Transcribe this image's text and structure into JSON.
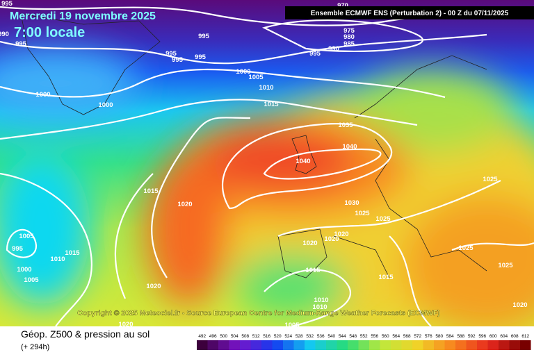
{
  "header": {
    "date_line": "Mercredi 19 novembre 2025",
    "time_line": "7:00 locale",
    "model_line": "Ensemble ECMWF ENS  (Perturbation 2)  - 00 Z du 07/11/2025"
  },
  "copyright": "Copyright © 2025 Meteociel.fr - Source European Centre for Medium-Range Weather Forecasts (ECMWF)",
  "footer": {
    "field": "Géop. Z500 & pression au sol",
    "lead": "(+ 294h)"
  },
  "colorbar": [
    492,
    496,
    500,
    504,
    508,
    512,
    516,
    520,
    524,
    528,
    532,
    536,
    540,
    544,
    548,
    552,
    556,
    560,
    564,
    568,
    572,
    576,
    580,
    584,
    588,
    592,
    596,
    600,
    604,
    608,
    612
  ],
  "isobar_labels": [
    995,
    990,
    995,
    995,
    995,
    995,
    995,
    970,
    975,
    980,
    985,
    990,
    995,
    1000,
    1005,
    1010,
    1015,
    1000,
    1000,
    1035,
    1040,
    1040,
    1015,
    1020,
    1030,
    1025,
    1025,
    1025,
    1005,
    995,
    1000,
    1005,
    1015,
    1010,
    1020,
    1020,
    1020,
    1015,
    1015,
    1025,
    1025,
    1020,
    1010,
    1010,
    1020,
    1020,
    1005
  ]
}
